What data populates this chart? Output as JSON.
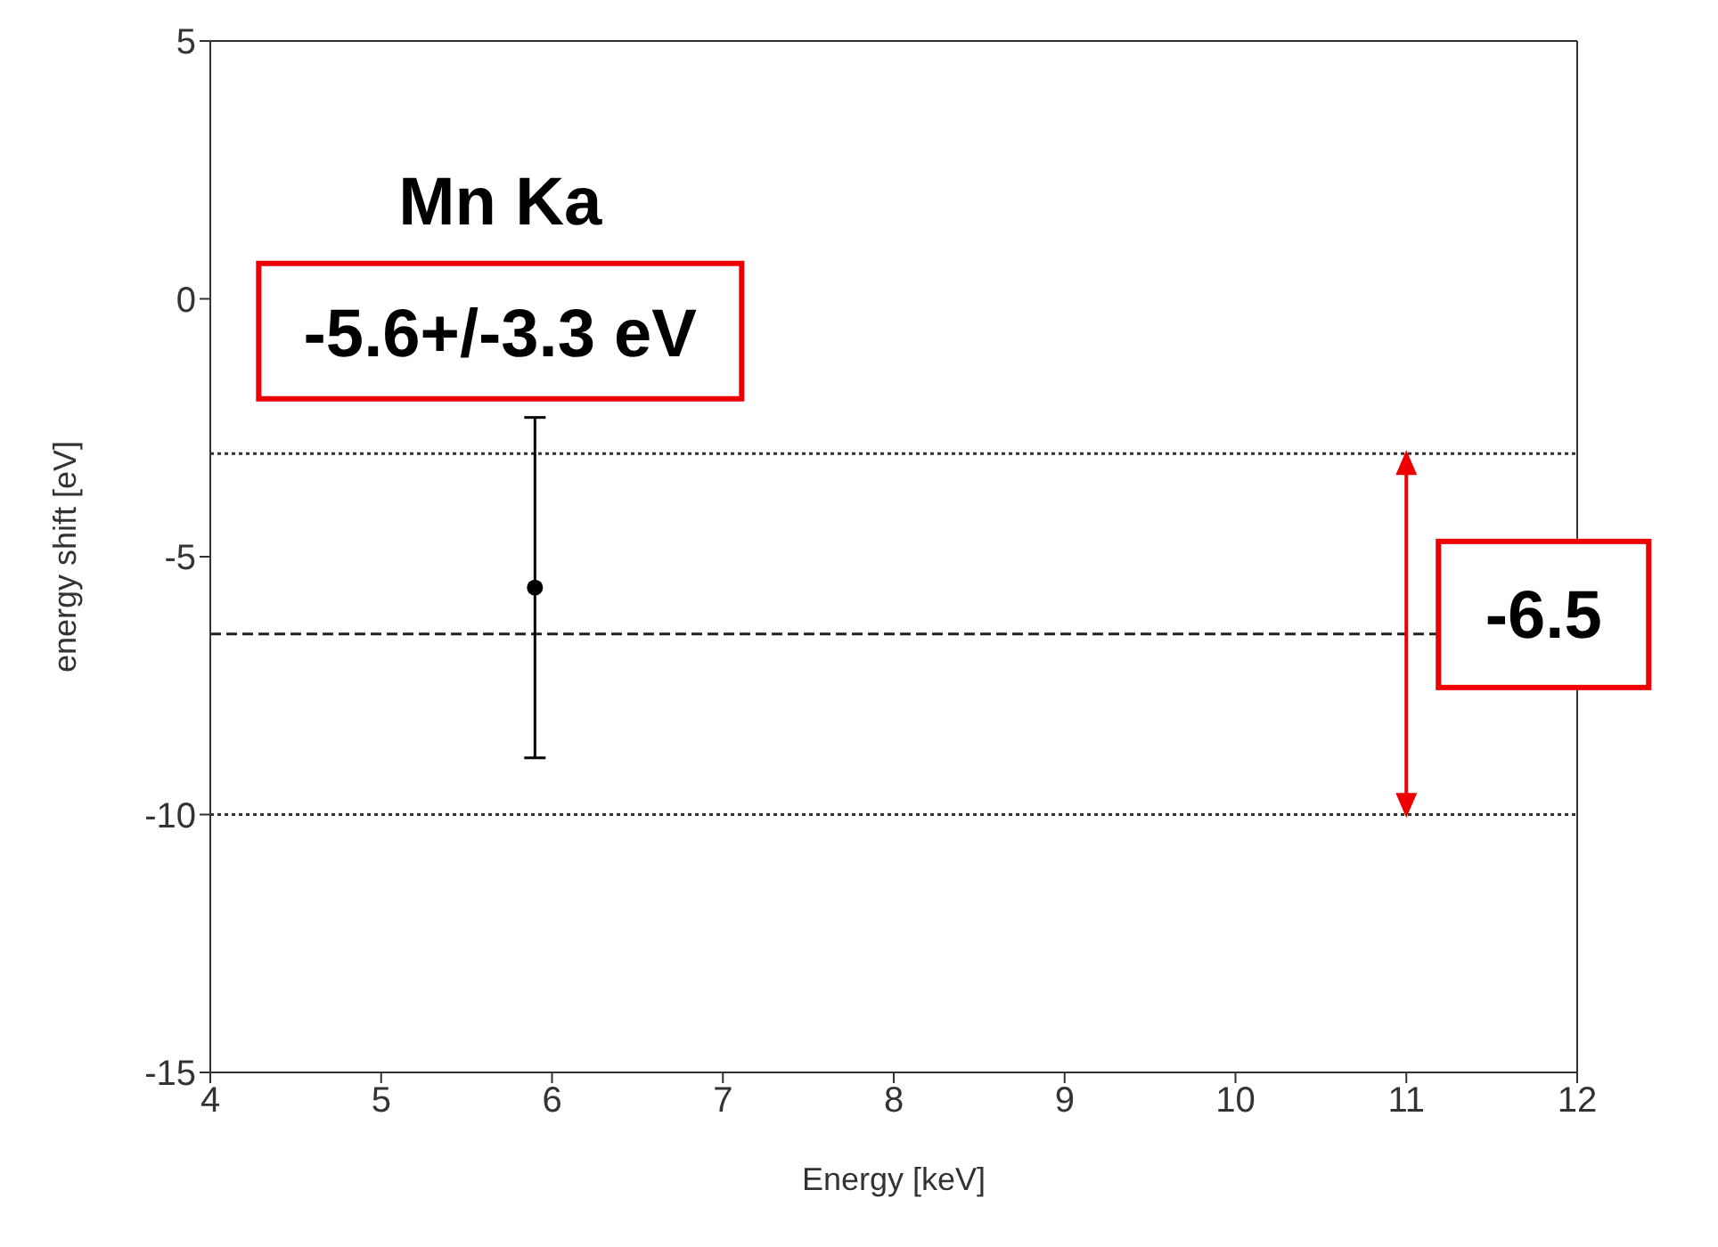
{
  "chart_data": {
    "type": "scatter",
    "xlabel": "Energy [keV]",
    "ylabel": "energy shift [eV]",
    "x": [
      5.9
    ],
    "series": [
      {
        "color": "#000000",
        "values": [
          -5.6
        ],
        "errors": [
          3.3
        ]
      }
    ],
    "xlim": [
      4,
      12
    ],
    "xticks": [
      4,
      5,
      6,
      7,
      8,
      9,
      10,
      11,
      12
    ],
    "ylim": [
      -15,
      5
    ],
    "yticks": [
      -15,
      -10,
      -5,
      0,
      5
    ],
    "grid": false,
    "marker": "circle",
    "ref_lines": [
      {
        "axis": "y",
        "value": -3,
        "color": "#333333",
        "line_style": "dotted"
      },
      {
        "axis": "y",
        "value": -6.5,
        "color": "#222222",
        "line_style": "dashed"
      },
      {
        "axis": "y",
        "value": -10,
        "color": "#333333",
        "line_style": "dotted"
      }
    ],
    "annotations": [
      "Mn Ka",
      "-5.6+/-3.3 eV",
      {
        "text": "-6.5",
        "x": 11,
        "y": -6.5
      }
    ]
  }
}
